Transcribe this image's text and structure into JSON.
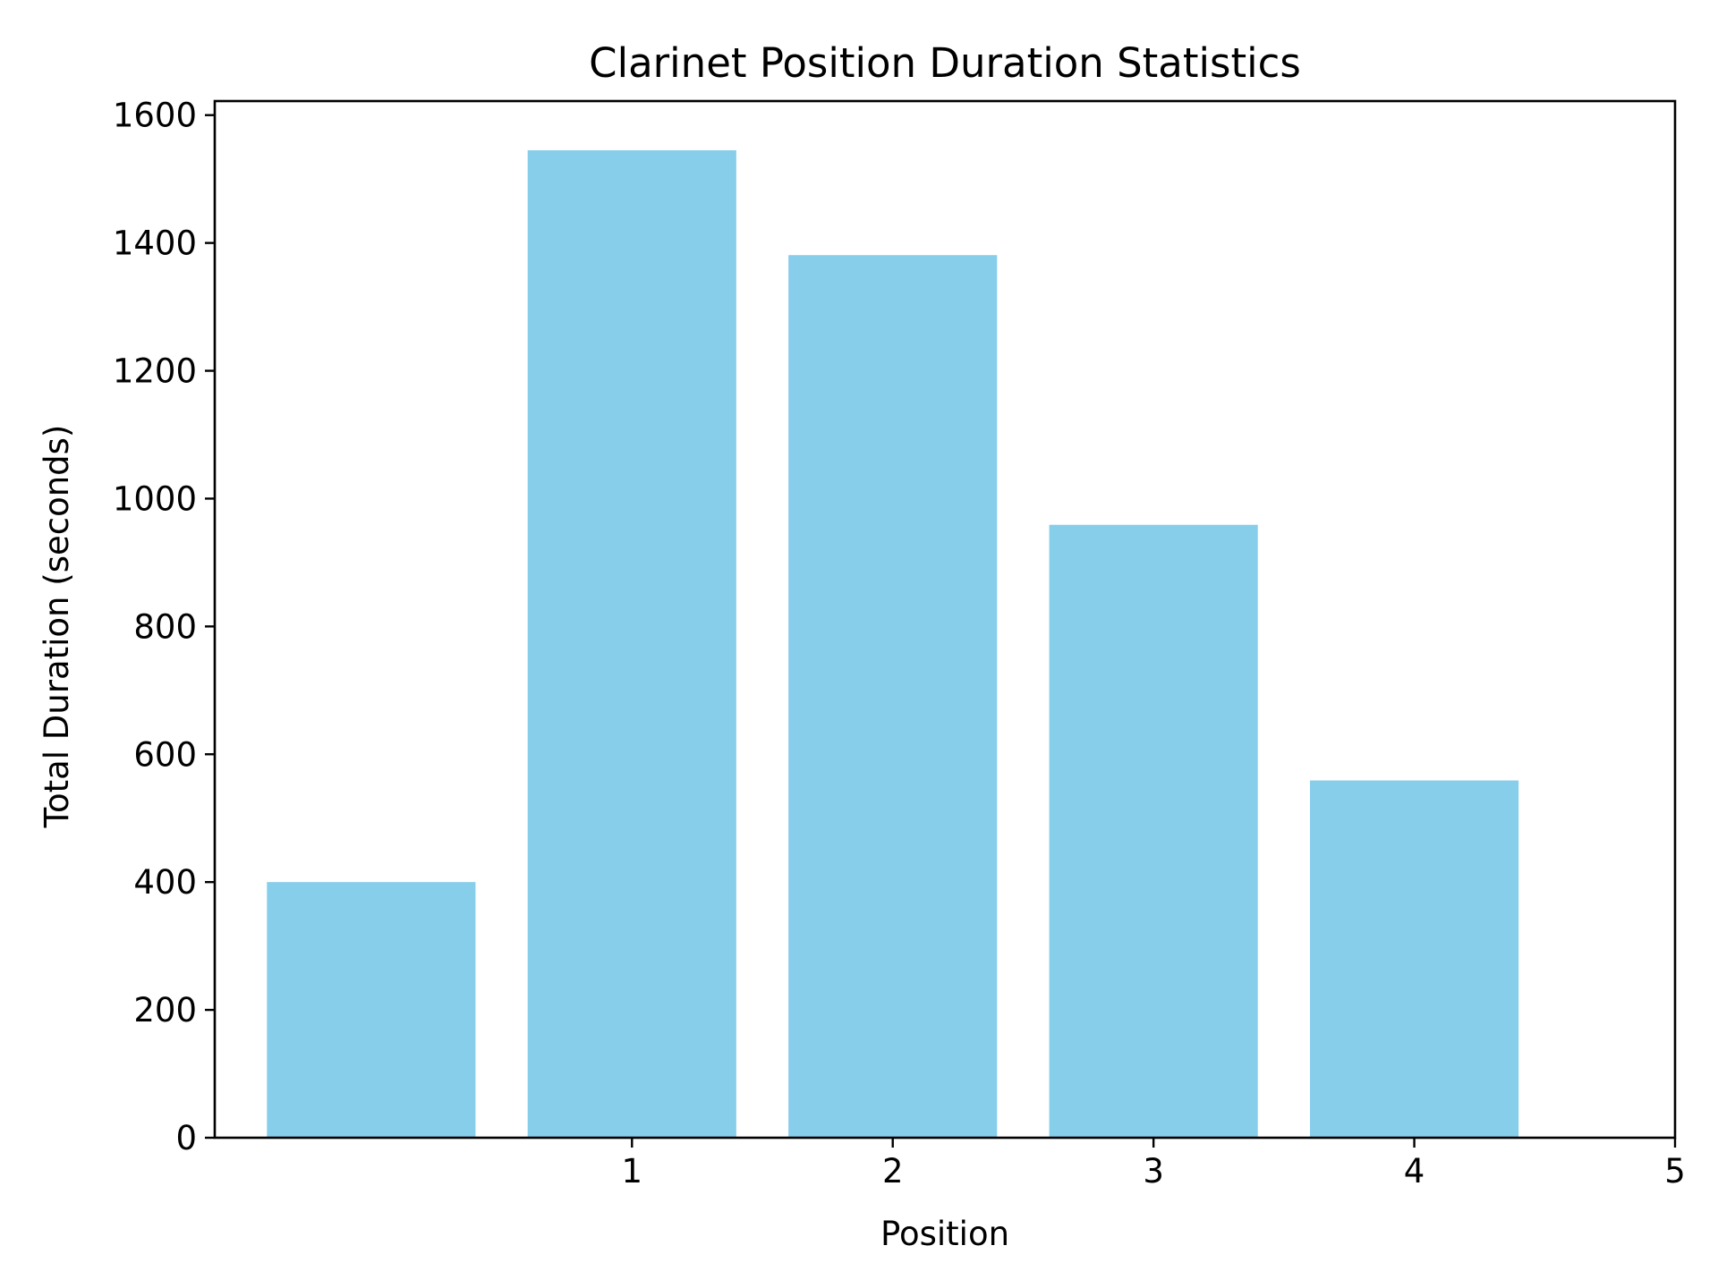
{
  "chart_data": {
    "type": "bar",
    "title": "Clarinet Position Duration Statistics",
    "xlabel": "Position",
    "ylabel": "Total Duration (seconds)",
    "x": [
      0,
      1,
      2,
      3,
      4
    ],
    "values": [
      400,
      1545,
      1381,
      959,
      559
    ],
    "xlim": [
      -0.6,
      5
    ],
    "ylim": [
      0,
      1622
    ],
    "xticks": [
      1,
      2,
      3,
      4,
      5
    ],
    "yticks": [
      0,
      200,
      400,
      600,
      800,
      1000,
      1200,
      1400,
      1600
    ],
    "bar_width": 0.8,
    "bar_color": "#87CEEB",
    "grid": false,
    "legend": "none"
  }
}
